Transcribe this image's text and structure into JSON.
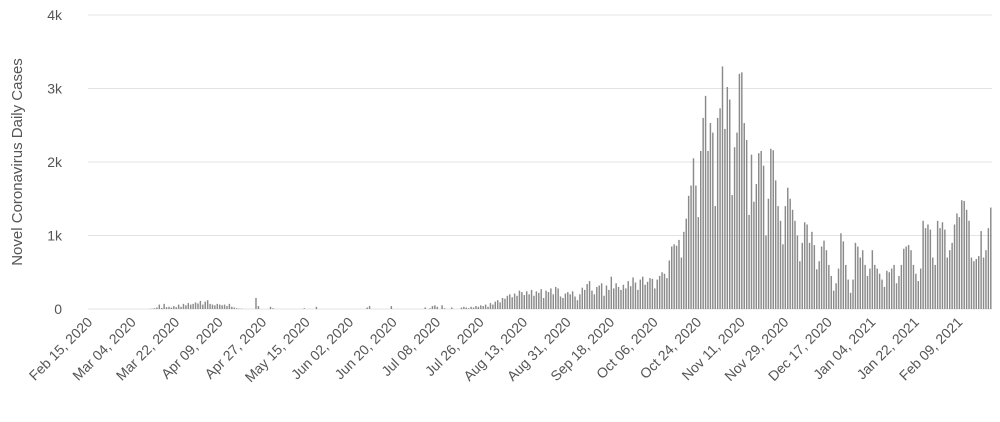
{
  "chart_data": {
    "type": "bar",
    "y_label": "Novel Coronavirus Daily Cases",
    "color": "#8a8a8a",
    "grid": true,
    "ylim": [
      0,
      4000
    ],
    "yticks": [
      0,
      {
        "value": 1000,
        "label": "1k"
      },
      {
        "value": 2000,
        "label": "2k"
      },
      {
        "value": 3000,
        "label": "3k"
      },
      {
        "value": 4000,
        "label": "4k"
      }
    ],
    "categories": [
      "Feb 15, 2020",
      null,
      null,
      null,
      null,
      null,
      null,
      null,
      null,
      null,
      null,
      null,
      null,
      null,
      null,
      null,
      null,
      null,
      "Mar 04, 2020",
      null,
      null,
      null,
      null,
      null,
      null,
      null,
      null,
      null,
      null,
      null,
      null,
      null,
      null,
      null,
      null,
      null,
      "Mar 22, 2020",
      null,
      null,
      null,
      null,
      null,
      null,
      null,
      null,
      null,
      null,
      null,
      null,
      null,
      null,
      null,
      null,
      null,
      "Apr 09, 2020",
      null,
      null,
      null,
      null,
      null,
      null,
      null,
      null,
      null,
      null,
      null,
      null,
      null,
      null,
      null,
      null,
      null,
      "Apr 27, 2020",
      null,
      null,
      null,
      null,
      null,
      null,
      null,
      null,
      null,
      null,
      null,
      null,
      null,
      null,
      null,
      null,
      null,
      "May 15, 2020",
      null,
      null,
      null,
      null,
      null,
      null,
      null,
      null,
      null,
      null,
      null,
      null,
      null,
      null,
      null,
      null,
      null,
      "Jun 02, 2020",
      null,
      null,
      null,
      null,
      null,
      null,
      null,
      null,
      null,
      null,
      null,
      null,
      null,
      null,
      null,
      null,
      null,
      "Jun 20, 2020",
      null,
      null,
      null,
      null,
      null,
      null,
      null,
      null,
      null,
      null,
      null,
      null,
      null,
      null,
      null,
      null,
      null,
      "Jul 08, 2020",
      null,
      null,
      null,
      null,
      null,
      null,
      null,
      null,
      null,
      null,
      null,
      null,
      null,
      null,
      null,
      null,
      null,
      "Jul 26, 2020",
      null,
      null,
      null,
      null,
      null,
      null,
      null,
      null,
      null,
      null,
      null,
      null,
      null,
      null,
      null,
      null,
      null,
      "Aug 13, 2020",
      null,
      null,
      null,
      null,
      null,
      null,
      null,
      null,
      null,
      null,
      null,
      null,
      null,
      null,
      null,
      null,
      null,
      "Aug 31, 2020",
      null,
      null,
      null,
      null,
      null,
      null,
      null,
      null,
      null,
      null,
      null,
      null,
      null,
      null,
      null,
      null,
      null,
      "Sep 18, 2020",
      null,
      null,
      null,
      null,
      null,
      null,
      null,
      null,
      null,
      null,
      null,
      null,
      null,
      null,
      null,
      null,
      null,
      "Oct 06, 2020",
      null,
      null,
      null,
      null,
      null,
      null,
      null,
      null,
      null,
      null,
      null,
      null,
      null,
      null,
      null,
      null,
      null,
      "Oct 24, 2020",
      null,
      null,
      null,
      null,
      null,
      null,
      null,
      null,
      null,
      null,
      null,
      null,
      null,
      null,
      null,
      null,
      null,
      "Nov 11, 2020",
      null,
      null,
      null,
      null,
      null,
      null,
      null,
      null,
      null,
      null,
      null,
      null,
      null,
      null,
      null,
      null,
      null,
      "Nov 29, 2020",
      null,
      null,
      null,
      null,
      null,
      null,
      null,
      null,
      null,
      null,
      null,
      null,
      null,
      null,
      null,
      null,
      null,
      "Dec 17, 2020",
      null,
      null,
      null,
      null,
      null,
      null,
      null,
      null,
      null,
      null,
      null,
      null,
      null,
      null,
      null,
      null,
      null,
      "Jan 04, 2021",
      null,
      null,
      null,
      null,
      null,
      null,
      null,
      null,
      null,
      null,
      null,
      null,
      null,
      null,
      null,
      null,
      null,
      "Jan 22, 2021",
      null,
      null,
      null,
      null,
      null,
      null,
      null,
      null,
      null,
      null,
      null,
      null,
      null,
      null,
      null,
      null,
      null,
      "Feb 09, 2021",
      null,
      null,
      null,
      null,
      null,
      null,
      null,
      null,
      null,
      null,
      null,
      null,
      null
    ],
    "values": [
      0,
      0,
      0,
      0,
      0,
      0,
      0,
      0,
      0,
      0,
      0,
      0,
      0,
      0,
      0,
      0,
      0,
      0,
      0,
      0,
      0,
      0,
      0,
      0,
      0,
      2,
      5,
      10,
      20,
      60,
      15,
      70,
      25,
      30,
      20,
      40,
      25,
      60,
      30,
      70,
      50,
      80,
      60,
      70,
      90,
      75,
      110,
      60,
      100,
      120,
      70,
      60,
      50,
      70,
      60,
      50,
      60,
      40,
      70,
      30,
      20,
      10,
      5,
      5,
      0,
      0,
      0,
      0,
      0,
      150,
      40,
      0,
      0,
      0,
      0,
      30,
      10,
      0,
      0,
      0,
      0,
      0,
      0,
      0,
      0,
      0,
      0,
      0,
      0,
      10,
      0,
      0,
      0,
      0,
      30,
      0,
      0,
      0,
      0,
      0,
      0,
      0,
      0,
      0,
      0,
      0,
      0,
      0,
      0,
      0,
      0,
      0,
      0,
      0,
      0,
      20,
      40,
      0,
      0,
      0,
      0,
      0,
      0,
      0,
      0,
      40,
      0,
      0,
      0,
      0,
      0,
      0,
      0,
      0,
      0,
      0,
      0,
      0,
      0,
      20,
      0,
      10,
      40,
      50,
      30,
      0,
      50,
      10,
      0,
      0,
      20,
      0,
      0,
      0,
      20,
      30,
      20,
      10,
      30,
      20,
      40,
      30,
      50,
      40,
      60,
      30,
      80,
      60,
      100,
      120,
      90,
      150,
      140,
      180,
      200,
      160,
      210,
      180,
      250,
      230,
      190,
      240,
      200,
      260,
      180,
      240,
      220,
      270,
      150,
      250,
      230,
      280,
      200,
      300,
      280,
      170,
      150,
      210,
      230,
      200,
      240,
      170,
      120,
      200,
      290,
      260,
      340,
      380,
      250,
      200,
      300,
      320,
      350,
      180,
      320,
      260,
      440,
      280,
      350,
      300,
      260,
      330,
      280,
      380,
      310,
      430,
      360,
      260,
      400,
      440,
      330,
      370,
      420,
      410,
      280,
      400,
      450,
      500,
      480,
      420,
      660,
      850,
      880,
      860,
      940,
      700,
      1050,
      1230,
      1540,
      1680,
      2050,
      1680,
      1250,
      2150,
      2600,
      2900,
      2150,
      2530,
      2400,
      1400,
      2600,
      2730,
      3300,
      2450,
      3020,
      2850,
      1550,
      2200,
      2400,
      3200,
      3220,
      2530,
      2300,
      1280,
      2100,
      1460,
      1700,
      2120,
      2150,
      1950,
      1000,
      1500,
      2180,
      2160,
      1750,
      1400,
      1200,
      880,
      1400,
      1650,
      1500,
      1350,
      1200,
      1000,
      650,
      900,
      1180,
      1150,
      900,
      1050,
      870,
      540,
      650,
      850,
      930,
      800,
      600,
      450,
      250,
      350,
      550,
      1030,
      920,
      600,
      400,
      220,
      400,
      900,
      850,
      700,
      800,
      600,
      450,
      550,
      800,
      600,
      550,
      480,
      400,
      300,
      520,
      500,
      550,
      600,
      350,
      450,
      600,
      820,
      850,
      870,
      800,
      600,
      480,
      380,
      550,
      1200,
      1100,
      1150,
      1080,
      700,
      600,
      1200,
      1100,
      1180,
      1080,
      700,
      800,
      900,
      1150,
      1300,
      1250,
      1480,
      1470,
      1350,
      1200,
      700,
      650,
      680,
      720,
      1060,
      700,
      800,
      1100,
      1380
    ]
  }
}
